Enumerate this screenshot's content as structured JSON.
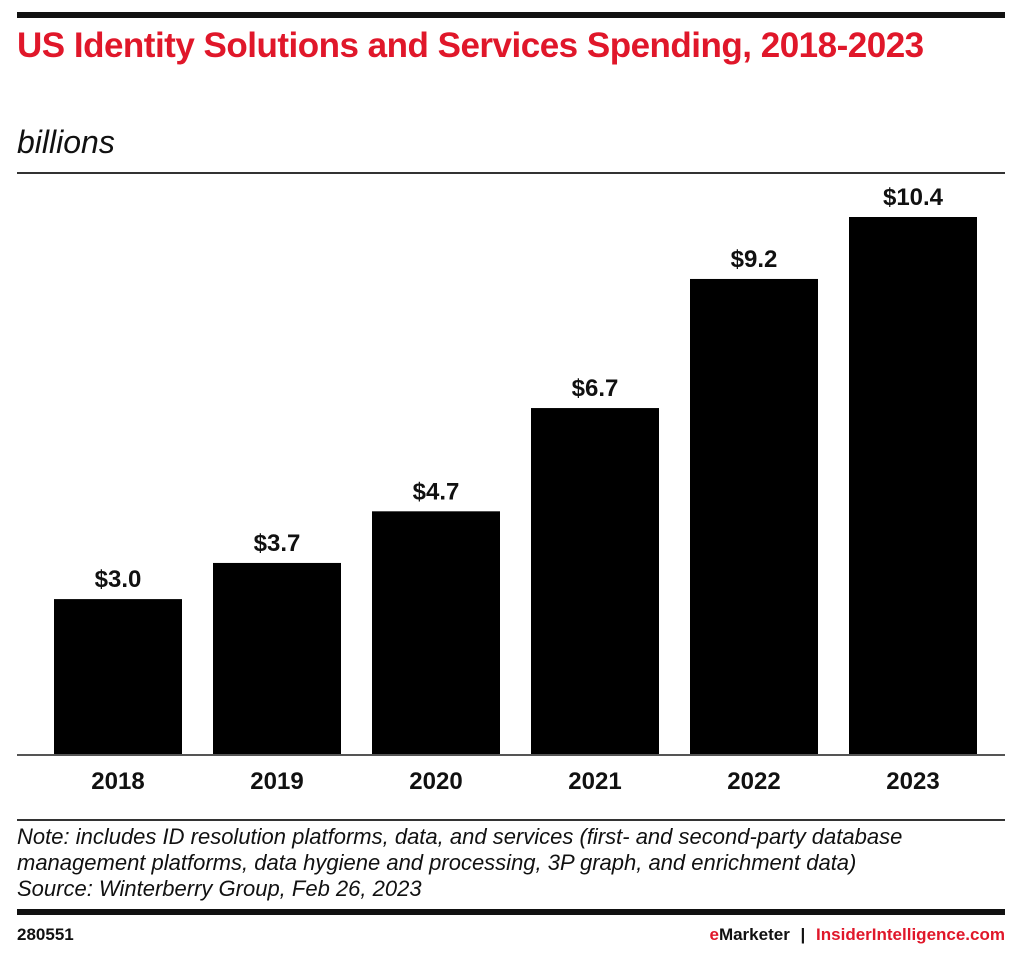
{
  "chart_data": {
    "type": "bar",
    "title": "US Identity Solutions and Services Spending, 2018-2023",
    "subtitle": "billions",
    "categories": [
      "2018",
      "2019",
      "2020",
      "2021",
      "2022",
      "2023"
    ],
    "values": [
      3.0,
      3.7,
      4.7,
      6.7,
      9.2,
      10.4
    ],
    "data_labels": [
      "$3.0",
      "$3.7",
      "$4.7",
      "$6.7",
      "$9.2",
      "$10.4"
    ],
    "ylim": [
      0,
      10.4
    ],
    "grid": false,
    "bar_color": "#000000",
    "title_color": "#e0172a"
  },
  "note": {
    "line1": "Note: includes ID resolution platforms, data, and services (first- and second-party database",
    "line2": "management platforms, data hygiene and processing, 3P graph, and enrichment data)",
    "source": "Source: Winterberry Group, Feb 26, 2023"
  },
  "footer": {
    "id": "280551",
    "brand_e": "e",
    "brand_rest": "Marketer",
    "separator": "|",
    "site": "InsiderIntelligence.com"
  }
}
